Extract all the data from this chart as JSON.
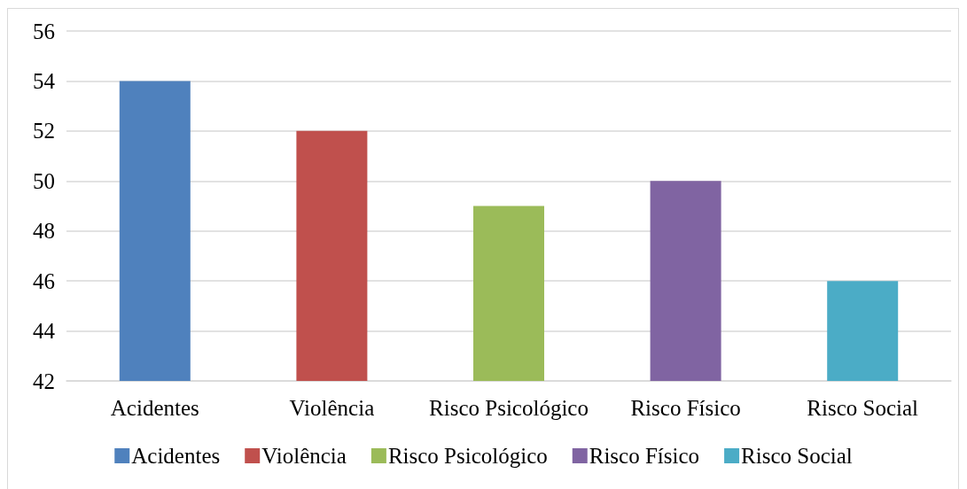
{
  "chart_data": {
    "type": "bar",
    "categories": [
      "Acidentes",
      "Violência",
      "Risco Psicológico",
      "Risco Físico",
      "Risco Social"
    ],
    "series": [
      {
        "name": "Acidentes",
        "color": "#4f81bd",
        "values": [
          54,
          null,
          null,
          null,
          null
        ]
      },
      {
        "name": "Violência",
        "color": "#c0504d",
        "values": [
          null,
          52,
          null,
          null,
          null
        ]
      },
      {
        "name": "Risco Psicológico",
        "color": "#9bbb59",
        "values": [
          null,
          null,
          49,
          null,
          null
        ]
      },
      {
        "name": "Risco Físico",
        "color": "#8064a2",
        "values": [
          null,
          null,
          null,
          50,
          null
        ]
      },
      {
        "name": "Risco Social",
        "color": "#4bacc6",
        "values": [
          null,
          null,
          null,
          null,
          46
        ]
      }
    ],
    "ylim": [
      42,
      56
    ],
    "yticks": [
      42,
      44,
      46,
      48,
      50,
      52,
      54,
      56
    ],
    "grid": "y",
    "legend": "bottom"
  }
}
